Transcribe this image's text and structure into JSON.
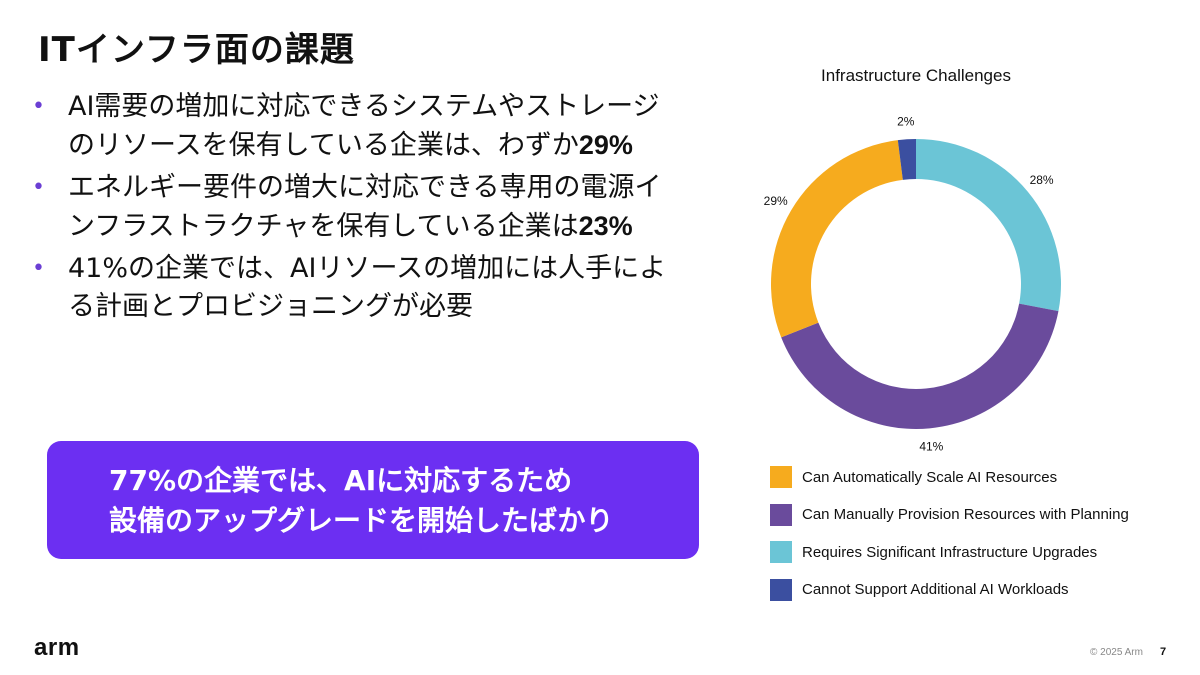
{
  "slide": {
    "title": "ITインフラ面の課題",
    "bullets": [
      {
        "text": "AI需要の増加に対応できるシステムやストレージのリソースを保有している企業は、わずか",
        "highlight": "29%",
        "suffix": ""
      },
      {
        "text": "エネルギー要件の増大に対応できる専用の電源インフラストラクチャを保有している企業は",
        "highlight": "23%",
        "suffix": ""
      },
      {
        "text": "41%の企業では、AIリソースの増加には人手による計画とプロビジョニングが必要",
        "highlight": "",
        "suffix": ""
      }
    ],
    "bullet_marker": "•",
    "callout_lines": [
      "77%の企業では、AIに対応するため",
      "設備のアップグレードを開始したばかり"
    ],
    "callout_color": "#6c2ff2"
  },
  "footer": {
    "logo": "arm",
    "copyright": "© 2025 Arm",
    "page_number": "7"
  },
  "chart_data": {
    "type": "pie",
    "style": "donut",
    "title": "Infrastructure Challenges",
    "slices": [
      {
        "label": "Requires Significant Infrastructure Upgrades",
        "value": 28,
        "display": "28%",
        "color": "#6bc5d6"
      },
      {
        "label": "Can Manually Provision Resources with Planning",
        "value": 41,
        "display": "41%",
        "color": "#6a4b9c"
      },
      {
        "label": "Can Automatically Scale AI Resources",
        "value": 29,
        "display": "29%",
        "color": "#f6ab1e"
      },
      {
        "label": "Cannot Support Additional AI Workloads",
        "value": 2,
        "display": "2%",
        "color": "#3b4fa0"
      }
    ],
    "legend": [
      {
        "label": "Can Automatically Scale AI Resources",
        "color": "#f6ab1e"
      },
      {
        "label": "Can Manually Provision Resources with Planning",
        "color": "#6a4b9c"
      },
      {
        "label": "Requires Significant Infrastructure Upgrades",
        "color": "#6bc5d6"
      },
      {
        "label": "Cannot Support Additional AI Workloads",
        "color": "#3b4fa0"
      }
    ],
    "legend_position": "bottom"
  }
}
